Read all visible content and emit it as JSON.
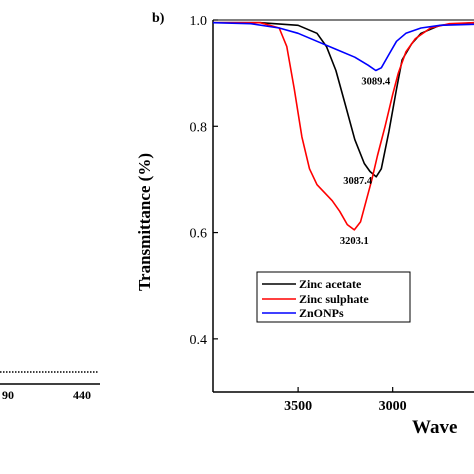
{
  "panel_label": "b)",
  "chart_data": {
    "type": "line",
    "title": "",
    "xlabel": "Wave",
    "ylabel": "Transmittance (%)",
    "xlim": [
      3950,
      2570
    ],
    "ylim": [
      0.3,
      1.0
    ],
    "x_ticks": [
      3500,
      3000
    ],
    "y_ticks": [
      0.4,
      0.6,
      0.8,
      1.0
    ],
    "y_tick_labels": [
      "0.4",
      "0.6",
      "0.8",
      "1.0"
    ],
    "legend_position": "lower-left",
    "series": [
      {
        "name": "Zinc acetate",
        "color": "#000000",
        "points": [
          [
            3950,
            0.995
          ],
          [
            3700,
            0.995
          ],
          [
            3500,
            0.99
          ],
          [
            3400,
            0.975
          ],
          [
            3350,
            0.95
          ],
          [
            3300,
            0.905
          ],
          [
            3250,
            0.84
          ],
          [
            3200,
            0.775
          ],
          [
            3150,
            0.73
          ],
          [
            3120,
            0.715
          ],
          [
            3087,
            0.705
          ],
          [
            3060,
            0.72
          ],
          [
            3020,
            0.79
          ],
          [
            2980,
            0.87
          ],
          [
            2950,
            0.925
          ],
          [
            2900,
            0.955
          ],
          [
            2850,
            0.975
          ],
          [
            2750,
            0.99
          ],
          [
            2570,
            0.995
          ]
        ]
      },
      {
        "name": "Zinc sulphate",
        "color": "#ff0000",
        "points": [
          [
            3950,
            0.995
          ],
          [
            3700,
            0.995
          ],
          [
            3600,
            0.985
          ],
          [
            3560,
            0.95
          ],
          [
            3520,
            0.87
          ],
          [
            3480,
            0.78
          ],
          [
            3440,
            0.72
          ],
          [
            3400,
            0.69
          ],
          [
            3360,
            0.675
          ],
          [
            3320,
            0.66
          ],
          [
            3280,
            0.64
          ],
          [
            3240,
            0.615
          ],
          [
            3203,
            0.605
          ],
          [
            3170,
            0.62
          ],
          [
            3140,
            0.66
          ],
          [
            3110,
            0.7
          ],
          [
            3080,
            0.745
          ],
          [
            3040,
            0.8
          ],
          [
            3000,
            0.86
          ],
          [
            2970,
            0.9
          ],
          [
            2930,
            0.94
          ],
          [
            2880,
            0.965
          ],
          [
            2800,
            0.985
          ],
          [
            2700,
            0.993
          ],
          [
            2570,
            0.995
          ]
        ]
      },
      {
        "name": "ZnONPs",
        "color": "#0000ff",
        "points": [
          [
            3950,
            0.995
          ],
          [
            3750,
            0.993
          ],
          [
            3600,
            0.985
          ],
          [
            3500,
            0.975
          ],
          [
            3400,
            0.96
          ],
          [
            3300,
            0.945
          ],
          [
            3200,
            0.93
          ],
          [
            3130,
            0.915
          ],
          [
            3089,
            0.905
          ],
          [
            3060,
            0.91
          ],
          [
            3020,
            0.935
          ],
          [
            2980,
            0.96
          ],
          [
            2930,
            0.975
          ],
          [
            2850,
            0.985
          ],
          [
            2750,
            0.99
          ],
          [
            2570,
            0.992
          ]
        ]
      }
    ],
    "annotations": [
      {
        "text": "3089.4",
        "x": 3089.4,
        "y": 0.905,
        "anchor": "below"
      },
      {
        "text": "3087.4",
        "x": 3087.4,
        "y": 0.705,
        "anchor": "left"
      },
      {
        "text": "3203.1",
        "x": 3203.1,
        "y": 0.605,
        "anchor": "below"
      }
    ]
  },
  "left_panel_fragment": {
    "tick_labels": [
      "90",
      "440"
    ]
  }
}
